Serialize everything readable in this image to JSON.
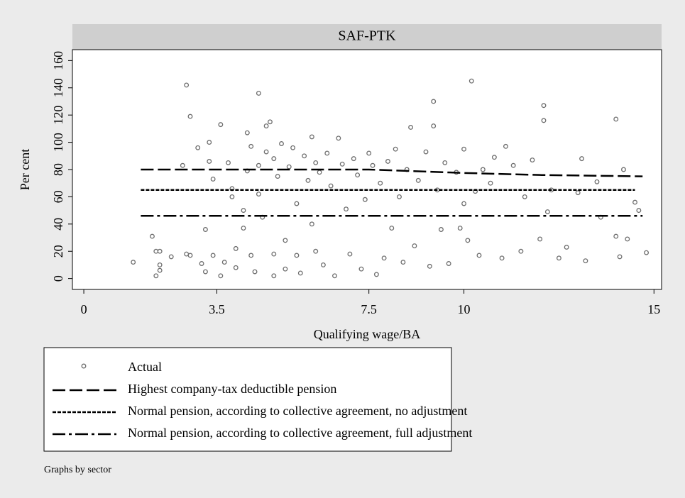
{
  "chart_data": {
    "type": "scatter",
    "title": "SAF-PTK",
    "x_label": "Qualifying wage/BA",
    "y_label": "Per cent",
    "note": "Graphs by sector",
    "xlim": [
      -0.3,
      15.2
    ],
    "ylim": [
      -8,
      168
    ],
    "xticks": [
      0,
      3.5,
      7.5,
      10,
      15
    ],
    "yticks": [
      0,
      20,
      40,
      60,
      80,
      100,
      120,
      140,
      160
    ],
    "series": [
      {
        "name": "Actual",
        "style": "points",
        "color": "#6e6e6e",
        "x": [
          1.3,
          1.8,
          1.9,
          1.9,
          2,
          2,
          2,
          2.3,
          2.6,
          2.7,
          2.8,
          2.7,
          2.8,
          3,
          3.1,
          3.2,
          3.2,
          3.3,
          3.3,
          3.4,
          3.4,
          3.6,
          3.6,
          3.7,
          3.8,
          3.9,
          3.9,
          4,
          4,
          4.2,
          4.2,
          4.3,
          4.3,
          4.4,
          4.4,
          4.5,
          4.6,
          4.6,
          4.6,
          4.7,
          4.8,
          4.8,
          4.9,
          5,
          5,
          5,
          5.1,
          5.2,
          5.3,
          5.3,
          5.4,
          5.5,
          5.6,
          5.6,
          5.7,
          5.8,
          5.9,
          6,
          6,
          6.1,
          6.1,
          6.2,
          6.3,
          6.4,
          6.5,
          6.6,
          6.7,
          6.8,
          6.9,
          7,
          7.1,
          7.2,
          7.3,
          7.4,
          7.5,
          7.6,
          7.7,
          7.8,
          7.9,
          8,
          8.1,
          8.2,
          8.3,
          8.4,
          8.5,
          8.6,
          8.7,
          8.8,
          9,
          9.1,
          9.2,
          9.2,
          9.3,
          9.4,
          9.5,
          9.6,
          9.8,
          9.9,
          10,
          10,
          10.1,
          10.2,
          10.3,
          10.4,
          10.5,
          10.7,
          10.8,
          11,
          11.1,
          11.3,
          11.5,
          11.6,
          11.8,
          12,
          12.1,
          12.1,
          12.2,
          12.3,
          12.5,
          12.7,
          13,
          13.1,
          13.2,
          13.5,
          13.6,
          14,
          14,
          14.1,
          14.2,
          14.3,
          14.5,
          14.6,
          14.8
        ],
        "values": [
          12,
          31,
          2,
          20,
          20,
          10,
          6,
          16,
          83,
          142,
          119,
          18,
          17,
          96,
          11,
          5,
          36,
          86,
          100,
          73,
          17,
          113,
          2,
          12,
          85,
          60,
          66,
          22,
          8,
          50,
          37,
          107,
          79,
          97,
          17,
          5,
          136,
          83,
          62,
          45,
          112,
          93,
          115,
          18,
          2,
          88,
          75,
          99,
          28,
          7,
          82,
          96,
          55,
          17,
          4,
          90,
          72,
          40,
          104,
          85,
          20,
          78,
          10,
          92,
          68,
          2,
          103,
          84,
          51,
          18,
          88,
          76,
          7,
          58,
          92,
          83,
          3,
          70,
          15,
          86,
          37,
          95,
          60,
          12,
          80,
          111,
          24,
          72,
          93,
          9,
          130,
          112,
          65,
          36,
          85,
          11,
          78,
          37,
          95,
          55,
          28,
          145,
          64,
          17,
          80,
          70,
          89,
          15,
          97,
          83,
          20,
          60,
          87,
          29,
          127,
          116,
          49,
          65,
          15,
          23,
          63,
          88,
          13,
          71,
          45,
          117,
          31,
          16,
          80,
          29,
          56,
          50,
          19
        ]
      },
      {
        "name": "Highest company-tax deductible pension",
        "style": "dash",
        "color": "#000000",
        "x": [
          1.5,
          7.5,
          10,
          12,
          14.7
        ],
        "values": [
          80,
          80,
          77.5,
          76,
          75
        ]
      },
      {
        "name": "Normal pension, according to collective agreement, no adjustment",
        "style": "short-dash",
        "color": "#000000",
        "x": [
          1.5,
          14.5
        ],
        "values": [
          65,
          65
        ]
      },
      {
        "name": "Normal pension, according to collective agreement, full adjustment",
        "style": "dash-dot",
        "color": "#000000",
        "x": [
          1.5,
          14.7
        ],
        "values": [
          46,
          46
        ]
      }
    ]
  }
}
